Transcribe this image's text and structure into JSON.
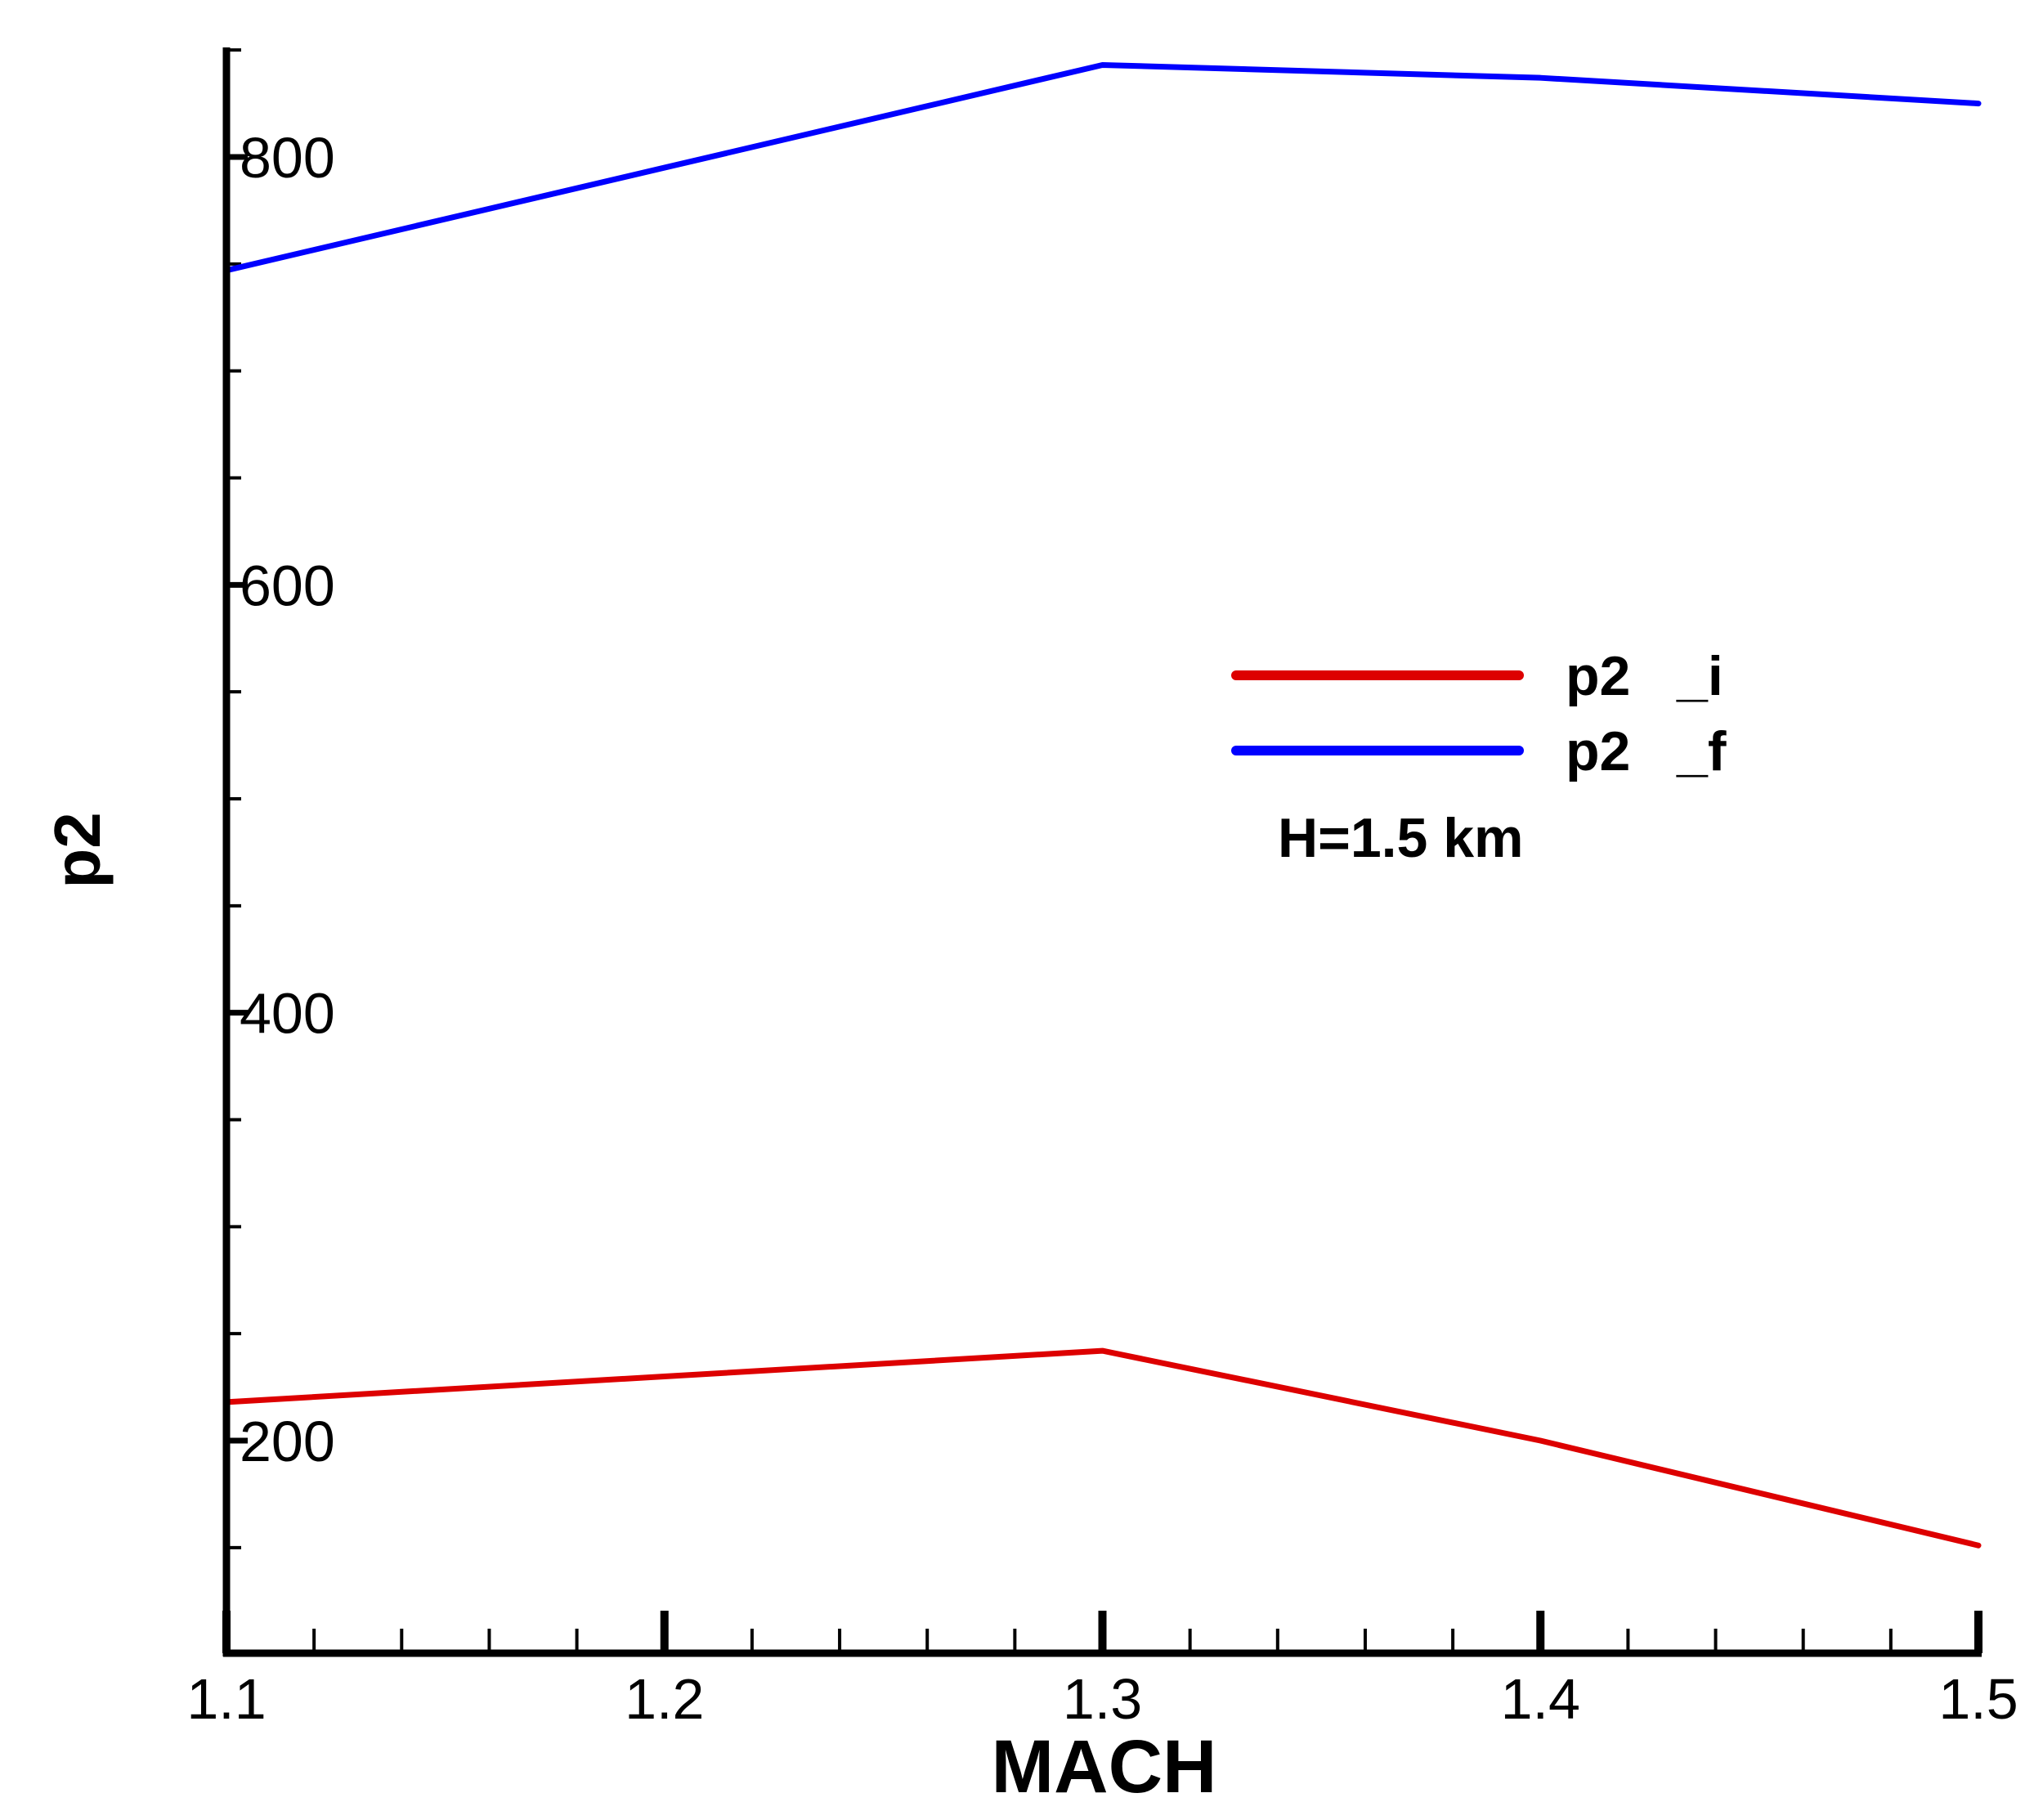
{
  "chart_data": {
    "type": "line",
    "xlabel": "MACH",
    "ylabel": "p2",
    "xlim": [
      1.1,
      1.5
    ],
    "ylim": [
      100,
      850
    ],
    "x_ticks": [
      1.1,
      1.2,
      1.3,
      1.4,
      1.5
    ],
    "x_tick_labels": [
      "1.1",
      "1.2",
      "1.3",
      "1.4",
      "1.5"
    ],
    "y_ticks": [
      200,
      400,
      600,
      800
    ],
    "y_tick_labels": [
      "200",
      "400",
      "600",
      "800"
    ],
    "y_minor_step": 50,
    "x_minor_step": 0.02,
    "grid": false,
    "legend_position": "center-right",
    "annotation": "H=1.5 km",
    "x": [
      1.1,
      1.2,
      1.3,
      1.4,
      1.5
    ],
    "series": [
      {
        "name": "p2 _i",
        "color": "#dd0000",
        "values": [
          218,
          230,
          242,
          200,
          151
        ]
      },
      {
        "name": "p2 _f",
        "color": "#0000ff",
        "values": [
          747,
          795,
          843,
          837,
          825
        ]
      }
    ]
  }
}
